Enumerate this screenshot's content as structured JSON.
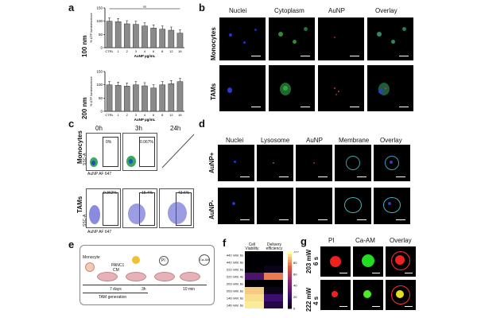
{
  "panels": {
    "a": {
      "letter": "a",
      "top": {
        "side_label": "100 nm",
        "ylabel": "% ATP luminescence",
        "xlabel": "AuNP µg/mL",
        "sig_label": "ns",
        "yticks": [
          "150",
          "100",
          "50",
          "0"
        ]
      },
      "bottom": {
        "side_label": "200 nm",
        "ylabel": "% ATP luminescence",
        "xlabel": "AuNP µg/mL",
        "yticks": [
          "150",
          "100",
          "50",
          "0"
        ]
      }
    },
    "b": {
      "letter": "b",
      "columns": [
        "Nuclei",
        "Cytoplasm",
        "AuNP",
        "Overlay"
      ],
      "rows": [
        "Monocytes",
        "TAMs"
      ]
    },
    "c": {
      "letter": "c",
      "columns": [
        "0h",
        "3h",
        "24h"
      ],
      "rows": [
        "Monocytes",
        "TAMs"
      ],
      "monocyte_pcts": [
        "0%",
        "0.067%"
      ],
      "tam_pcts": [
        "0.362%",
        "15.4%",
        "43.6%"
      ],
      "xaxis": "AuNP AF 647",
      "yaxis": "SSC-A"
    },
    "d": {
      "letter": "d",
      "columns": [
        "Nuclei",
        "Lysosome",
        "AuNP",
        "Membrane",
        "Overlay"
      ],
      "rows": [
        "AuNP+",
        "AuNP-"
      ]
    },
    "e": {
      "letter": "e",
      "monocyte": "Monocyte",
      "panc": "PANC1",
      "cm": "CM",
      "pi": "PI",
      "caam": "Ca-AM",
      "days": "7 days",
      "h3": "3h",
      "min10": "10 min",
      "tam_generation": "TAM generation"
    },
    "f": {
      "letter": "f",
      "col_headers": [
        "Cell Viability",
        "Delivery efficiency"
      ],
      "colorbar_ticks": [
        "100",
        "80",
        "60",
        "40",
        "20",
        "0"
      ]
    },
    "g": {
      "letter": "g",
      "columns": [
        "PI",
        "Ca-AM",
        "Overlay"
      ],
      "rows": [
        "203 mW\n6 s",
        "222 mW\n4 s"
      ],
      "row1_a": "203 mW",
      "row1_b": "6 s",
      "row2_a": "222 mW",
      "row2_b": "4 s"
    }
  },
  "chart_data": [
    {
      "type": "bar",
      "title": "",
      "panel": "a-top",
      "categories": [
        "CTRL",
        "1",
        "2",
        "3",
        "4",
        "6",
        "8",
        "12",
        "16"
      ],
      "values": [
        100,
        98,
        90,
        88,
        82,
        74,
        70,
        66,
        55
      ],
      "xlabel": "AuNP µg/mL",
      "ylabel": "% ATP luminescence",
      "ylim": [
        0,
        150
      ]
    },
    {
      "type": "bar",
      "title": "",
      "panel": "a-bottom",
      "categories": [
        "CTRL",
        "1",
        "2",
        "3",
        "4",
        "6",
        "8",
        "12",
        "16"
      ],
      "values": [
        100,
        98,
        95,
        100,
        96,
        88,
        100,
        104,
        112
      ],
      "xlabel": "AuNP µg/mL",
      "ylabel": "% ATP luminescence",
      "ylim": [
        0,
        150
      ]
    },
    {
      "type": "heatmap",
      "panel": "f",
      "rows": [
        "442 mW, 6s",
        "442 mW, 6s",
        "222 mW, 6s",
        "222 mW, 4s",
        "203 mW, 6s",
        "203 mW, 6s",
        "146 mW, 6s",
        "146 mW, 6s"
      ],
      "columns": [
        "Cell Viability",
        "Delivery efficiency"
      ],
      "values": [
        [
          0,
          0
        ],
        [
          0,
          0
        ],
        [
          0,
          5
        ],
        [
          30,
          80
        ],
        [
          0,
          0
        ],
        [
          92,
          5
        ],
        [
          95,
          25
        ],
        [
          97,
          15
        ]
      ],
      "zlim": [
        0,
        100
      ]
    }
  ]
}
